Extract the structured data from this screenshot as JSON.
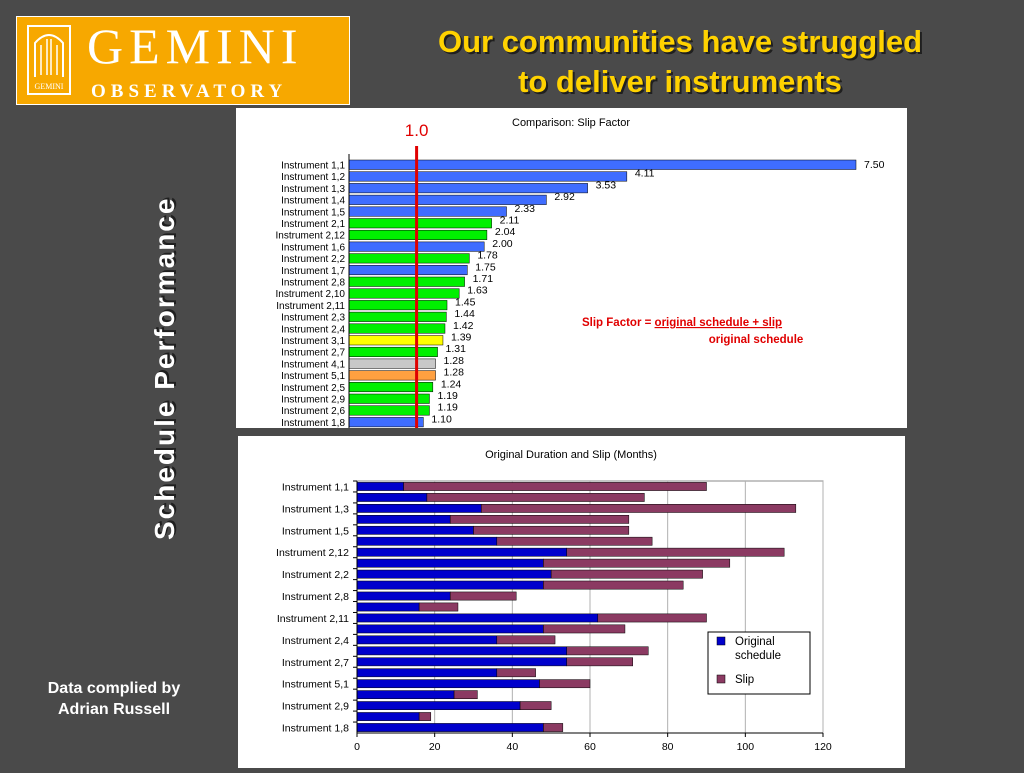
{
  "logo": {
    "emblem_text": "GEMINI",
    "main": "GEMINI",
    "sub": "OBSERVATORY"
  },
  "title": {
    "line1": "Our communities have struggled",
    "line2": "to deliver instruments"
  },
  "side_title": "Schedule Performance",
  "credit": {
    "line1": "Data complied by",
    "line2": "Adrian Russell"
  },
  "colors": {
    "background": "#4a4a4a",
    "title": "#ffd200",
    "logo": "#f7a800",
    "reference_line": "#e00000",
    "bar_blue": "#3f6dff",
    "bar_green": "#00f000",
    "bar_yellow": "#ffff00",
    "bar_gray": "#c8c8c8",
    "bar_orange": "#ffa040",
    "original": "#0000cc",
    "slip": "#8b3a62"
  },
  "chart_data": [
    {
      "type": "bar",
      "orientation": "horizontal",
      "title": "Comparison: Slip Factor",
      "reference_line": {
        "value": 1.0,
        "label": "1.0"
      },
      "annotation": {
        "prefix": "Slip Factor = ",
        "numerator": "original schedule + slip",
        "denominator": "original schedule"
      },
      "categories": [
        "Instrument 1,1",
        "Instrument 1,2",
        "Instrument 1,3",
        "Instrument 1,4",
        "Instrument 1,5",
        "Instrument 2,1",
        "Instrument 2,12",
        "Instrument 1,6",
        "Instrument 2,2",
        "Instrument 1,7",
        "Instrument 2,8",
        "Instrument 2,10",
        "Instrument 2,11",
        "Instrument 2,3",
        "Instrument 2,4",
        "Instrument 3,1",
        "Instrument 2,7",
        "Instrument 4,1",
        "Instrument 5,1",
        "Instrument 2,5",
        "Instrument 2,9",
        "Instrument 2,6",
        "Instrument 1,8"
      ],
      "values": [
        7.5,
        4.11,
        3.53,
        2.92,
        2.33,
        2.11,
        2.04,
        2.0,
        1.78,
        1.75,
        1.71,
        1.63,
        1.45,
        1.44,
        1.42,
        1.39,
        1.31,
        1.28,
        1.28,
        1.24,
        1.19,
        1.19,
        1.1
      ],
      "labels": [
        "7.50",
        "4.11",
        "3.53",
        "2.92",
        "2.33",
        "2.11",
        "2.04",
        "2.00",
        "1.78",
        "1.75",
        "1.71",
        "1.63",
        "1.45",
        "1.44",
        "1.42",
        "1.39",
        "1.31",
        "1.28",
        "1.28",
        "1.24",
        "1.19",
        "1.19",
        "1.10"
      ],
      "bar_colors": [
        "blue",
        "blue",
        "blue",
        "blue",
        "blue",
        "green",
        "green",
        "blue",
        "green",
        "blue",
        "green",
        "green",
        "green",
        "green",
        "green",
        "yellow",
        "green",
        "gray",
        "orange",
        "green",
        "green",
        "green",
        "blue"
      ],
      "xlim": [
        0,
        7.5
      ]
    },
    {
      "type": "bar",
      "orientation": "horizontal",
      "stacked": true,
      "title": "Original Duration and Slip (Months)",
      "categories": [
        "Instrument 1,1",
        "Instrument 1,2",
        "Instrument 1,3",
        "Instrument 1,4",
        "Instrument 1,5",
        "Instrument 1,6",
        "Instrument 2,12",
        "Instrument 2,1",
        "Instrument 2,2",
        "Instrument 1,7",
        "Instrument 2,8",
        "Instrument 2,10",
        "Instrument 2,11",
        "Instrument 2,3",
        "Instrument 2,4",
        "Instrument 3,1",
        "Instrument 2,7",
        "Instrument 4,1",
        "Instrument 5,1",
        "Instrument 2,5",
        "Instrument 2,9",
        "Instrument 2,6",
        "Instrument 1,8"
      ],
      "tick_categories": [
        "Instrument 1,1",
        "Instrument 1,3",
        "Instrument 1,5",
        "Instrument 2,12",
        "Instrument 2,2",
        "Instrument 2,8",
        "Instrument 2,11",
        "Instrument 2,4",
        "Instrument 2,7",
        "Instrument 5,1",
        "Instrument 2,9",
        "Instrument 1,8"
      ],
      "series": [
        {
          "name": "Original schedule",
          "name_lines": [
            "Original",
            "schedule"
          ],
          "values": [
            12,
            18,
            32,
            24,
            30,
            36,
            54,
            48,
            50,
            48,
            24,
            16,
            62,
            48,
            36,
            54,
            54,
            36,
            47,
            25,
            42,
            16,
            48
          ]
        },
        {
          "name": "Slip",
          "values": [
            78,
            56,
            81,
            46,
            40,
            40,
            56,
            48,
            39,
            36,
            17,
            10,
            28,
            21,
            15,
            21,
            17,
            10,
            13,
            6,
            8,
            3,
            5
          ]
        }
      ],
      "xlim": [
        0,
        120
      ],
      "xticks": [
        0,
        20,
        40,
        60,
        80,
        100,
        120
      ],
      "grid": true,
      "legend": "right"
    }
  ]
}
